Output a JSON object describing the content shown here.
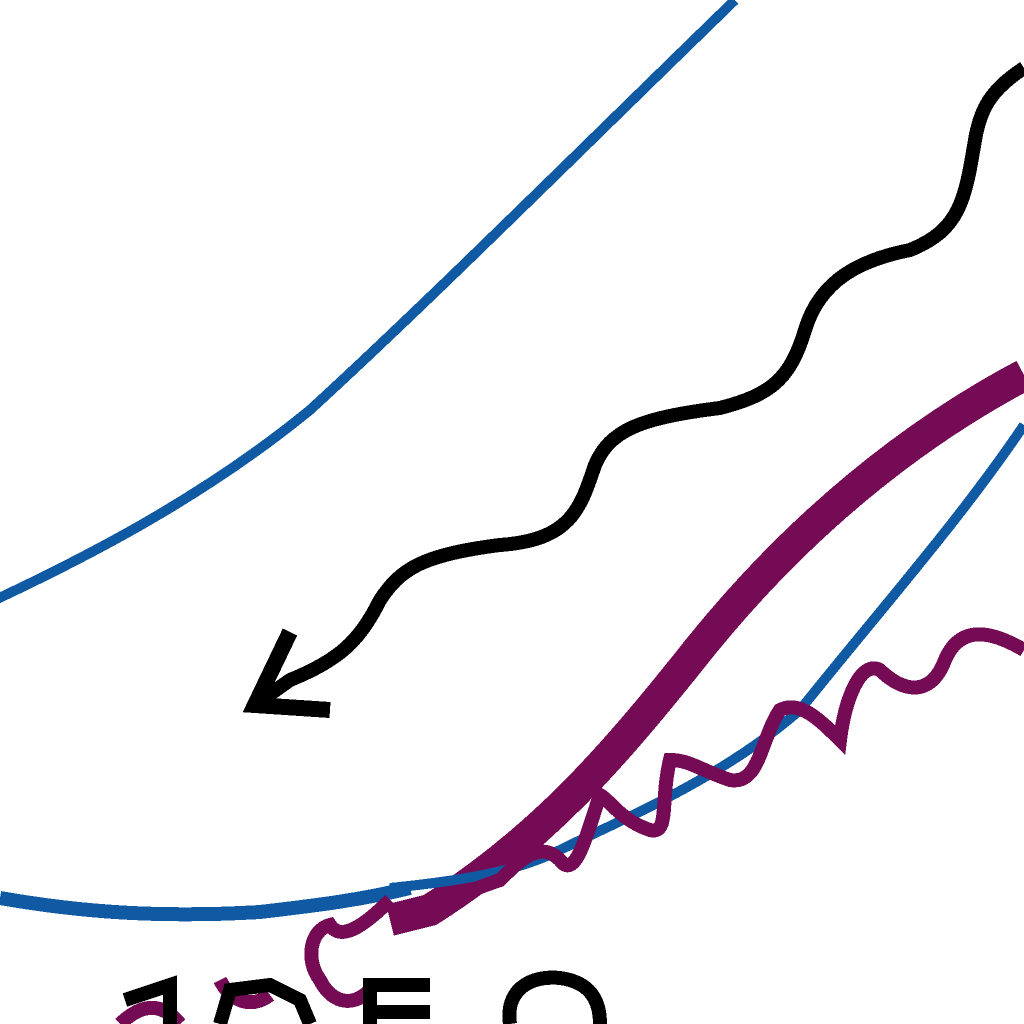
{
  "colors": {
    "background": "#ffffff",
    "blue": "#0f5aa3",
    "purple": "#760b55",
    "black": "#000000"
  },
  "strokes": [
    {
      "name": "upper-blue-arc",
      "color": "blue"
    },
    {
      "name": "black-arrow-curve",
      "color": "black"
    },
    {
      "name": "purple-thick-line",
      "color": "purple"
    },
    {
      "name": "lower-blue-line",
      "color": "blue"
    },
    {
      "name": "purple-wavy-line",
      "color": "purple"
    },
    {
      "name": "lower-blue-arc",
      "color": "blue"
    },
    {
      "name": "purple-small-wave",
      "color": "purple"
    },
    {
      "name": "partial-black-glyphs",
      "color": "black"
    }
  ],
  "arrowhead": {
    "name": "black-arrowhead",
    "color": "black"
  }
}
